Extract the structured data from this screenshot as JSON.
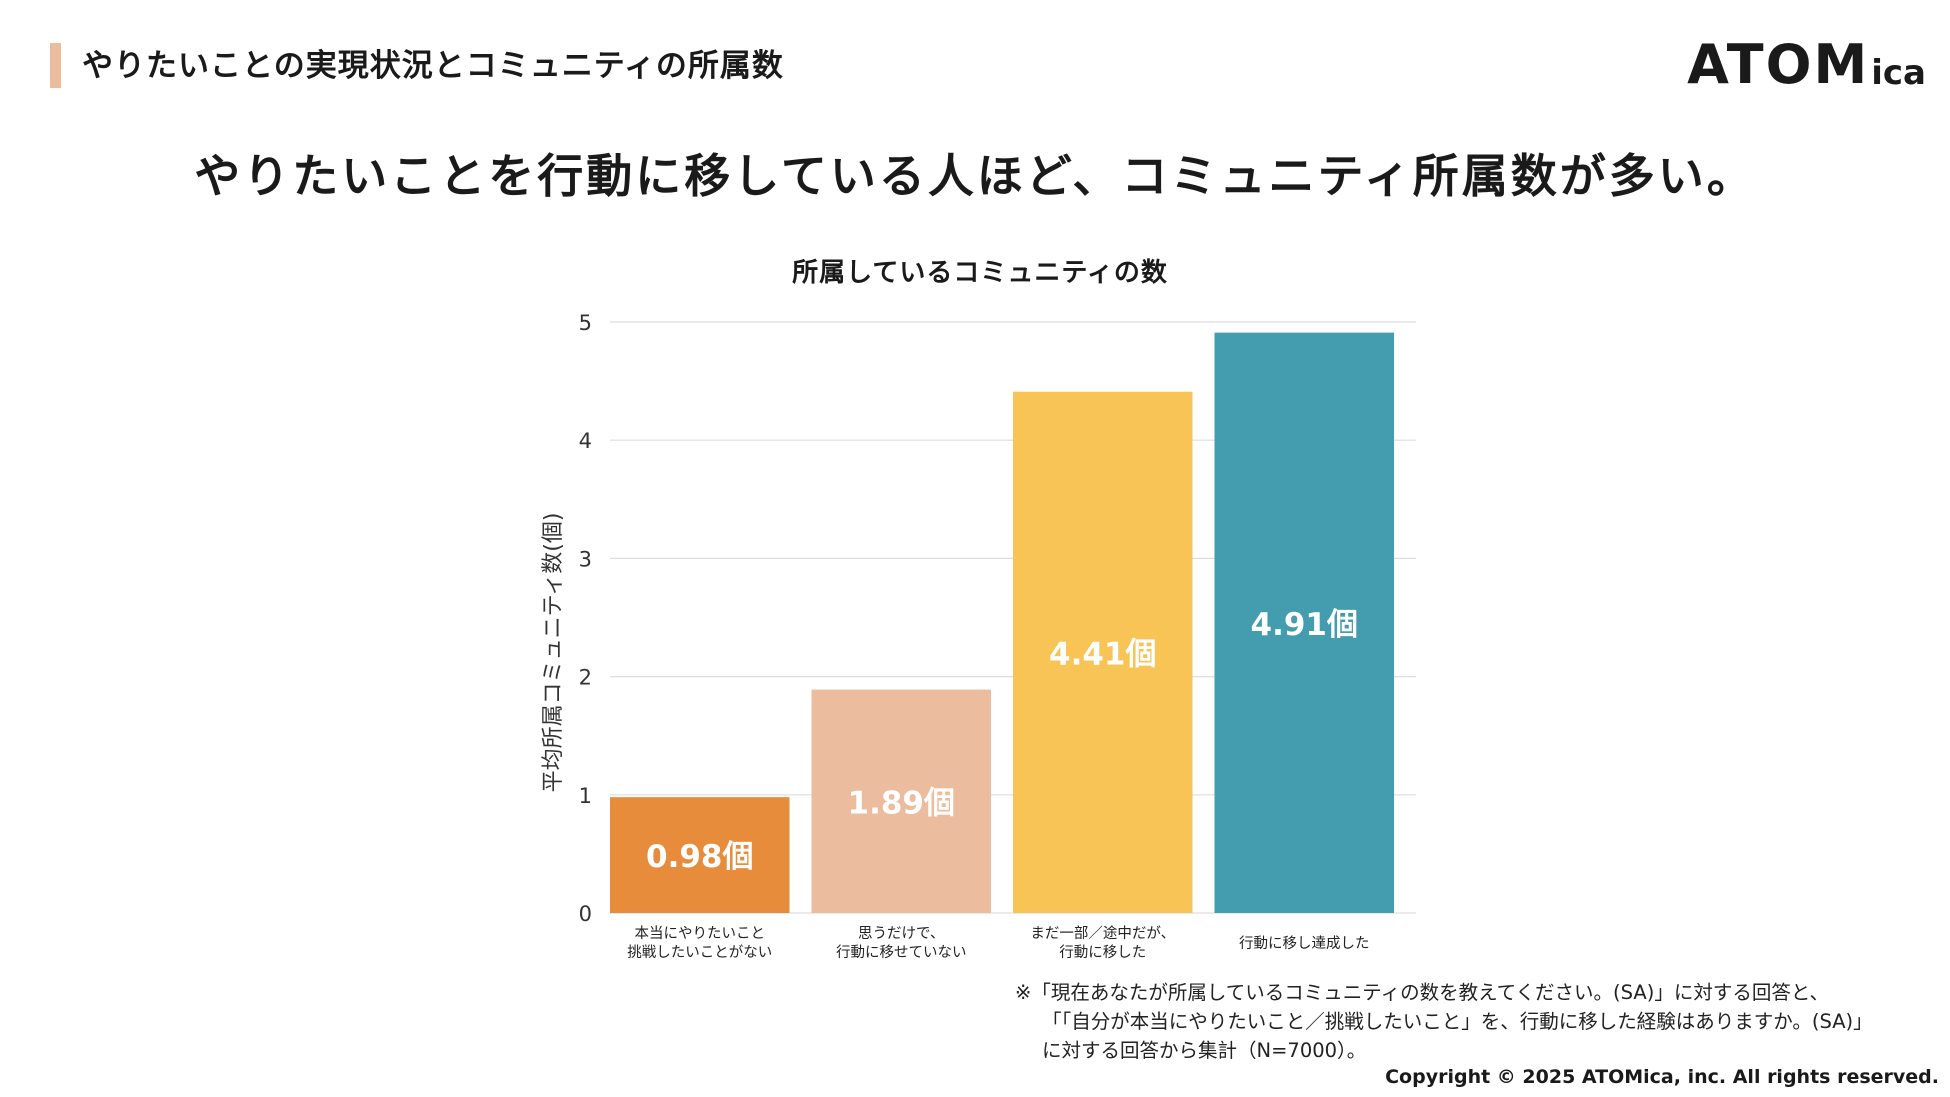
{
  "header": {
    "section_title": "やりたいことの実現状況とコミュニティの所属数",
    "logo_main": "ATOM",
    "logo_sub": "ica"
  },
  "headline": "やりたいことを行動に移している人ほど、コミュニティ所属数が多い。",
  "colors": {
    "accent_bar": "#ecbc9f",
    "gridline": "#dddddd",
    "axis_text": "#333333",
    "bar_label": "#ffffff"
  },
  "chart_data": {
    "type": "bar",
    "title": "所属しているコミュニティの数",
    "ylabel": "平均所属コミュニティ数(個)",
    "xlabel": "",
    "ylim": [
      0,
      5
    ],
    "yticks": [
      0,
      1,
      2,
      3,
      4,
      5
    ],
    "grid": true,
    "categories": [
      [
        "本当にやりたいこと",
        "挑戦したいことがない"
      ],
      [
        "思うだけで、",
        "行動に移せていない"
      ],
      [
        "まだ一部／途中だが、",
        "行動に移した"
      ],
      [
        "行動に移し達成した"
      ]
    ],
    "values": [
      0.98,
      1.89,
      4.41,
      4.91
    ],
    "data_labels": [
      "0.98個",
      "1.89個",
      "4.41個",
      "4.91個"
    ],
    "bar_colors": [
      "#e68c3a",
      "#ecbc9f",
      "#f7c455",
      "#449caf"
    ]
  },
  "footnote": [
    "※「現在あなたが所属しているコミュニティの数を教えてください。(SA)」に対する回答と、",
    "「「自分が本当にやりたいこと／挑戦したいこと」を、行動に移した経験はありますか。(SA)」",
    "に対する回答から集計（N=7000）。"
  ],
  "copyright": "Copyright © 2025 ATOMica, inc. All rights reserved."
}
